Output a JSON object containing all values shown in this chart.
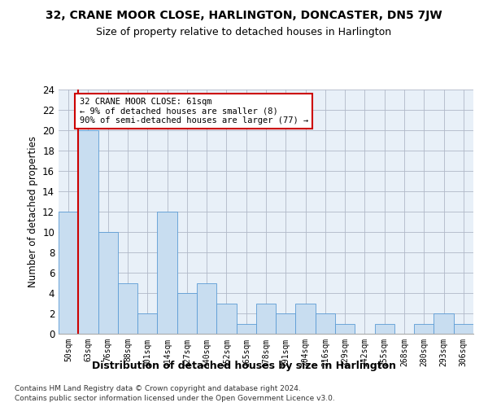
{
  "title": "32, CRANE MOOR CLOSE, HARLINGTON, DONCASTER, DN5 7JW",
  "subtitle": "Size of property relative to detached houses in Harlington",
  "xlabel": "Distribution of detached houses by size in Harlington",
  "ylabel": "Number of detached properties",
  "categories": [
    "50sqm",
    "63sqm",
    "76sqm",
    "88sqm",
    "101sqm",
    "114sqm",
    "127sqm",
    "140sqm",
    "152sqm",
    "165sqm",
    "178sqm",
    "191sqm",
    "204sqm",
    "216sqm",
    "229sqm",
    "242sqm",
    "255sqm",
    "268sqm",
    "280sqm",
    "293sqm",
    "306sqm"
  ],
  "values": [
    12,
    20,
    10,
    5,
    2,
    12,
    4,
    5,
    3,
    1,
    3,
    2,
    3,
    2,
    1,
    0,
    1,
    0,
    1,
    2,
    1
  ],
  "bar_color": "#c8ddf0",
  "bar_edge_color": "#5b9bd5",
  "grid_color": "#b0b8c8",
  "background_color": "#e8f0f8",
  "annotation_box_color": "#cc0000",
  "subject_line_color": "#cc0000",
  "annotation_text": "32 CRANE MOOR CLOSE: 61sqm\n← 9% of detached houses are smaller (8)\n90% of semi-detached houses are larger (77) →",
  "footer_line1": "Contains HM Land Registry data © Crown copyright and database right 2024.",
  "footer_line2": "Contains public sector information licensed under the Open Government Licence v3.0.",
  "ylim": [
    0,
    24
  ],
  "yticks": [
    0,
    2,
    4,
    6,
    8,
    10,
    12,
    14,
    16,
    18,
    20,
    22,
    24
  ]
}
